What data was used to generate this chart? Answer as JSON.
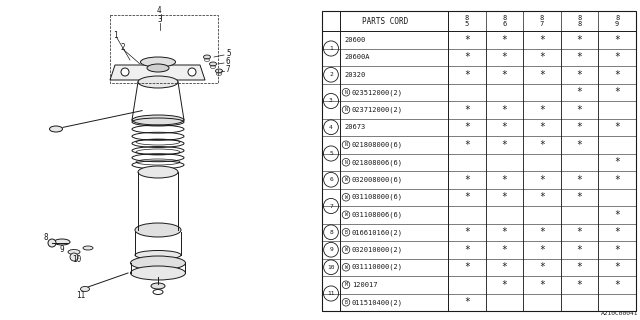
{
  "title": "A210C00041",
  "table_header": "PARTS CORD",
  "col_headers": [
    "85",
    "86",
    "87",
    "88",
    "89"
  ],
  "rows": [
    {
      "num": "1",
      "parts": [
        {
          "code": "20600",
          "marks": [
            1,
            1,
            1,
            1,
            1
          ]
        },
        {
          "code": "20600A",
          "marks": [
            1,
            1,
            1,
            1,
            1
          ]
        }
      ]
    },
    {
      "num": "2",
      "parts": [
        {
          "code": "20320",
          "marks": [
            1,
            1,
            1,
            1,
            1
          ]
        }
      ]
    },
    {
      "num": "3",
      "parts": [
        {
          "code": "N023512000(2)",
          "marks": [
            0,
            0,
            0,
            1,
            1
          ]
        },
        {
          "code": "N023712000(2)",
          "marks": [
            1,
            1,
            1,
            1,
            0
          ]
        }
      ]
    },
    {
      "num": "4",
      "parts": [
        {
          "code": "20673",
          "marks": [
            1,
            1,
            1,
            1,
            1
          ]
        }
      ]
    },
    {
      "num": "5",
      "parts": [
        {
          "code": "N021808000(6)",
          "marks": [
            1,
            1,
            1,
            1,
            0
          ]
        },
        {
          "code": "N021808006(6)",
          "marks": [
            0,
            0,
            0,
            0,
            1
          ]
        }
      ]
    },
    {
      "num": "6",
      "parts": [
        {
          "code": "W032008000(6)",
          "marks": [
            1,
            1,
            1,
            1,
            1
          ]
        }
      ]
    },
    {
      "num": "7",
      "parts": [
        {
          "code": "W031108000(6)",
          "marks": [
            1,
            1,
            1,
            1,
            0
          ]
        },
        {
          "code": "W031108006(6)",
          "marks": [
            0,
            0,
            0,
            0,
            1
          ]
        }
      ]
    },
    {
      "num": "8",
      "parts": [
        {
          "code": "B016610160(2)",
          "marks": [
            1,
            1,
            1,
            1,
            1
          ]
        }
      ]
    },
    {
      "num": "9",
      "parts": [
        {
          "code": "W032010000(2)",
          "marks": [
            1,
            1,
            1,
            1,
            1
          ]
        }
      ]
    },
    {
      "num": "10",
      "parts": [
        {
          "code": "W031110000(2)",
          "marks": [
            1,
            1,
            1,
            1,
            1
          ]
        }
      ]
    },
    {
      "num": "11",
      "parts": [
        {
          "code": "M120017",
          "marks": [
            0,
            1,
            1,
            1,
            1
          ]
        },
        {
          "code": "B011510400(2)",
          "marks": [
            1,
            0,
            0,
            0,
            0
          ]
        }
      ]
    }
  ],
  "bg_color": "#ffffff",
  "line_color": "#1a1a1a",
  "text_color": "#1a1a1a"
}
